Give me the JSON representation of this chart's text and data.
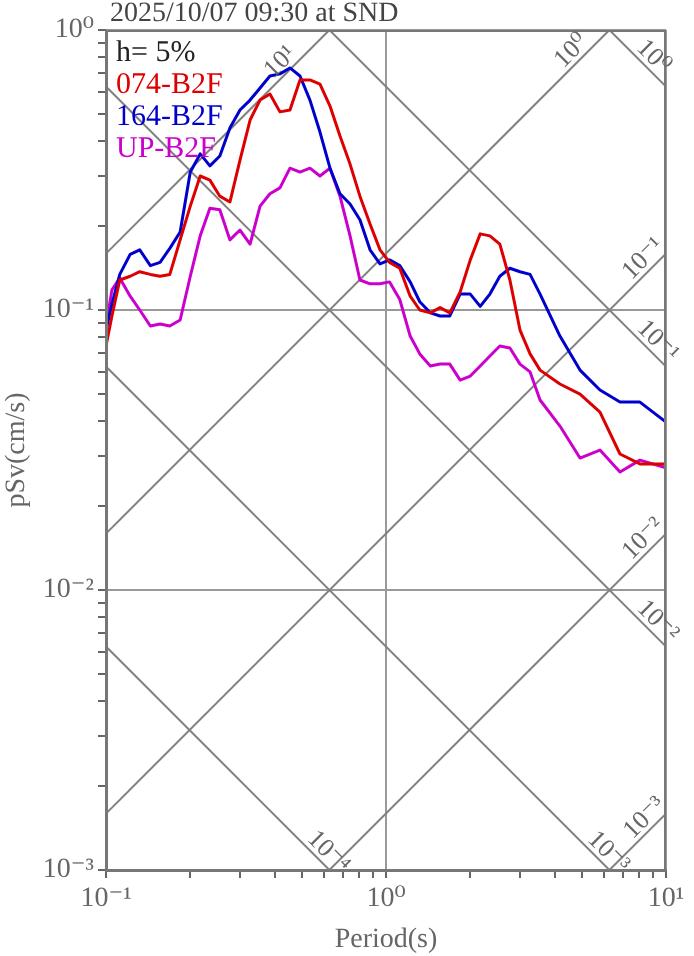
{
  "chart_data": {
    "type": "line",
    "title": "2025/10/07 09:30 at SND",
    "xlabel": "Period(s)",
    "ylabel": "pSv(cm/s)",
    "log": "xy",
    "grid": true,
    "legend": "top left",
    "xlim": [
      0.1,
      10
    ],
    "ylim": [
      0.001,
      1
    ],
    "xticks": [
      {
        "value": 0.1,
        "label": "10⁻¹"
      },
      {
        "value": 0.2,
        "label": null
      },
      {
        "value": 0.3,
        "label": null
      },
      {
        "value": 0.4,
        "label": null
      },
      {
        "value": 0.5,
        "label": null
      },
      {
        "value": 0.6,
        "label": null
      },
      {
        "value": 0.7,
        "label": null
      },
      {
        "value": 0.8,
        "label": null
      },
      {
        "value": 0.9,
        "label": null
      },
      {
        "value": 1,
        "label": "10⁰"
      },
      {
        "value": 2,
        "label": null
      },
      {
        "value": 3,
        "label": null
      },
      {
        "value": 4,
        "label": null
      },
      {
        "value": 5,
        "label": null
      },
      {
        "value": 6,
        "label": null
      },
      {
        "value": 7,
        "label": null
      },
      {
        "value": 8,
        "label": null
      },
      {
        "value": 9,
        "label": null
      },
      {
        "value": 10,
        "label": "10¹"
      }
    ],
    "yticks": [
      {
        "value": 0.001,
        "label": "10⁻³"
      },
      {
        "value": 0.002,
        "label": null
      },
      {
        "value": 0.003,
        "label": null
      },
      {
        "value": 0.004,
        "label": null
      },
      {
        "value": 0.005,
        "label": null
      },
      {
        "value": 0.006,
        "label": null
      },
      {
        "value": 0.007,
        "label": null
      },
      {
        "value": 0.008,
        "label": null
      },
      {
        "value": 0.009,
        "label": null
      },
      {
        "value": 0.01,
        "label": "10⁻²"
      },
      {
        "value": 0.02,
        "label": null
      },
      {
        "value": 0.03,
        "label": null
      },
      {
        "value": 0.04,
        "label": null
      },
      {
        "value": 0.05,
        "label": null
      },
      {
        "value": 0.06,
        "label": null
      },
      {
        "value": 0.07,
        "label": null
      },
      {
        "value": 0.08,
        "label": null
      },
      {
        "value": 0.09,
        "label": null
      },
      {
        "value": 0.1,
        "label": "10⁻¹"
      },
      {
        "value": 0.2,
        "label": null
      },
      {
        "value": 0.3,
        "label": null
      },
      {
        "value": 0.4,
        "label": null
      },
      {
        "value": 0.5,
        "label": null
      },
      {
        "value": 0.6,
        "label": null
      },
      {
        "value": 0.7,
        "label": null
      },
      {
        "value": 0.8,
        "label": null
      },
      {
        "value": 0.9,
        "label": null
      },
      {
        "value": 1,
        "label": "10⁰"
      }
    ],
    "x": [
      0.1,
      0.105,
      0.112,
      0.122,
      0.132,
      0.144,
      0.156,
      0.169,
      0.184,
      0.2,
      0.217,
      0.235,
      0.255,
      0.277,
      0.301,
      0.327,
      0.355,
      0.385,
      0.418,
      0.454,
      0.493,
      0.535,
      0.581,
      0.631,
      0.685,
      0.744,
      0.807,
      0.877,
      0.952,
      1.03,
      1.12,
      1.22,
      1.32,
      1.44,
      1.56,
      1.69,
      1.84,
      2.0,
      2.17,
      2.35,
      2.55,
      2.77,
      3.01,
      3.27,
      3.55,
      4.18,
      4.93,
      5.81,
      6.85,
      8.07,
      10
    ],
    "series": [
      {
        "name": "074-B2F",
        "color": "#dd0000",
        "values": [
          0.0744,
          0.0952,
          0.128,
          0.132,
          0.137,
          0.134,
          0.132,
          0.134,
          0.178,
          0.235,
          0.301,
          0.291,
          0.255,
          0.243,
          0.343,
          0.477,
          0.562,
          0.591,
          0.51,
          0.518,
          0.663,
          0.663,
          0.641,
          0.535,
          0.418,
          0.332,
          0.255,
          0.203,
          0.164,
          0.148,
          0.141,
          0.112,
          0.1,
          0.0977,
          0.102,
          0.0977,
          0.116,
          0.151,
          0.187,
          0.184,
          0.172,
          0.128,
          0.0848,
          0.0697,
          0.061,
          0.0544,
          0.0501,
          0.0432,
          0.0306,
          0.0282,
          0.0282
        ]
      },
      {
        "name": "164-B2F",
        "color": "#0000cc",
        "values": [
          0.0848,
          0.105,
          0.134,
          0.158,
          0.164,
          0.144,
          0.148,
          0.166,
          0.19,
          0.311,
          0.361,
          0.327,
          0.355,
          0.447,
          0.518,
          0.562,
          0.621,
          0.685,
          0.697,
          0.732,
          0.685,
          0.562,
          0.432,
          0.321,
          0.26,
          0.239,
          0.21,
          0.164,
          0.146,
          0.151,
          0.144,
          0.126,
          0.107,
          0.0977,
          0.0952,
          0.0952,
          0.114,
          0.114,
          0.103,
          0.114,
          0.132,
          0.141,
          0.137,
          0.134,
          0.114,
          0.0807,
          0.061,
          0.0518,
          0.0469,
          0.0469,
          0.0398
        ]
      },
      {
        "name": "UP-B2F",
        "color": "#cc00cc",
        "values": [
          0.0877,
          0.118,
          0.13,
          0.112,
          0.1,
          0.0877,
          0.0891,
          0.0877,
          0.0921,
          0.132,
          0.184,
          0.231,
          0.228,
          0.178,
          0.193,
          0.172,
          0.235,
          0.26,
          0.273,
          0.321,
          0.311,
          0.321,
          0.301,
          0.321,
          0.255,
          0.184,
          0.128,
          0.124,
          0.124,
          0.126,
          0.109,
          0.0807,
          0.0697,
          0.0631,
          0.0641,
          0.0641,
          0.0562,
          0.0581,
          0.0631,
          0.0685,
          0.0744,
          0.0732,
          0.0641,
          0.0601,
          0.0477,
          0.0385,
          0.0296,
          0.0316,
          0.0264,
          0.0291,
          0.0273
        ]
      },
      {
        "type": "line",
        "color": "#808080",
        "x": [
          6.28,
          10
        ],
        "values": [
          1,
          0.628
        ]
      },
      {
        "type": "line",
        "color": "#808080",
        "x": [
          0.628,
          10
        ],
        "values": [
          1,
          0.0628
        ]
      },
      {
        "type": "line",
        "color": "#808080",
        "x": [
          0.1,
          10
        ],
        "values": [
          0.628,
          0.00628
        ]
      },
      {
        "type": "line",
        "color": "#808080",
        "x": [
          0.1,
          6.28
        ],
        "values": [
          0.0628,
          0.001
        ]
      },
      {
        "type": "line",
        "color": "#808080",
        "x": [
          0.1,
          0.628
        ],
        "values": [
          0.00628,
          0.001
        ]
      },
      {
        "type": "line",
        "color": "#808080",
        "x": [
          0.1,
          0.628
        ],
        "values": [
          0.159,
          1
        ]
      },
      {
        "type": "line",
        "color": "#808080",
        "x": [
          0.1,
          6.28
        ],
        "values": [
          0.0159,
          1
        ]
      },
      {
        "type": "line",
        "color": "#808080",
        "x": [
          0.1,
          10
        ],
        "values": [
          0.00159,
          0.159
        ]
      },
      {
        "type": "line",
        "color": "#808080",
        "x": [
          0.628,
          10
        ],
        "values": [
          0.001,
          0.0159
        ]
      },
      {
        "type": "line",
        "color": "#808080",
        "x": [
          6.28,
          10
        ],
        "values": [
          0.001,
          0.00159
        ]
      }
    ],
    "annotations": [
      "h= 5%",
      {
        "text": "10¹",
        "x": 0.45,
        "y": 0.716
      },
      {
        "text": "10⁰",
        "x": 4.93,
        "y": 0.785
      },
      {
        "text": "10⁰",
        "x": 8.4,
        "y": 0.748
      },
      {
        "text": "10⁻¹",
        "x": 8.9,
        "y": 0.142
      },
      {
        "text": "10⁻¹",
        "x": 8.7,
        "y": 0.0722
      },
      {
        "text": "10⁻²",
        "x": 8.9,
        "y": 0.0142
      },
      {
        "text": "10⁻²",
        "x": 8.7,
        "y": 0.00722
      },
      {
        "text": "10⁻³",
        "x": 9.0,
        "y": 0.00143
      },
      {
        "text": "10⁻³",
        "x": 5.8,
        "y": 0.00108
      },
      {
        "text": "10⁻⁴",
        "x": 0.58,
        "y": 0.00108
      }
    ]
  }
}
